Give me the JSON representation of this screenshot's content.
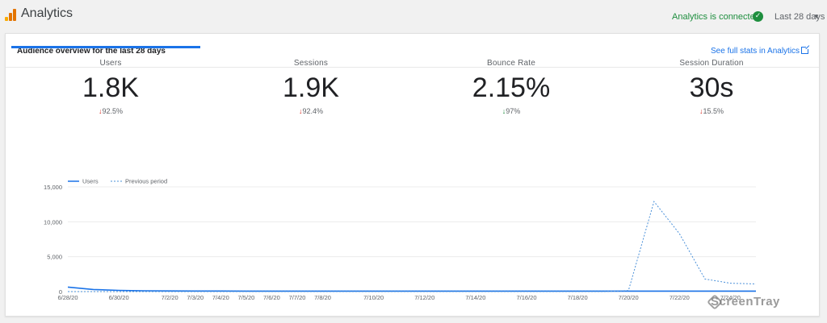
{
  "header": {
    "title": "Analytics",
    "connection_status": "Analytics is connected",
    "date_range": "Last 28 days",
    "colors": {
      "bar1": "#f9ab00",
      "bar2": "#e37400",
      "bar3": "#e37400",
      "connected": "#1e8e3e"
    }
  },
  "card": {
    "title": "Audience overview for the last 28 days",
    "full_stats_link": "See full stats in Analytics"
  },
  "metrics": [
    {
      "label": "Users",
      "value": "1.8K",
      "arrow": "↓",
      "change": "92.5%",
      "trend": "down-red"
    },
    {
      "label": "Sessions",
      "value": "1.9K",
      "arrow": "↓",
      "change": "92.4%",
      "trend": "down-red"
    },
    {
      "label": "Bounce Rate",
      "value": "2.15%",
      "arrow": "↓",
      "change": "97%",
      "trend": "down-green"
    },
    {
      "label": "Session Duration",
      "value": "30s",
      "arrow": "↓",
      "change": "15.5%",
      "trend": "down-red"
    }
  ],
  "chart_data": {
    "type": "line",
    "legend": [
      "Users",
      "Previous period"
    ],
    "yticks": [
      "15,000",
      "10,000",
      "5,000",
      "0"
    ],
    "ylim": [
      0,
      15000
    ],
    "grid": true,
    "x_ticks": [
      "6/28/20",
      "6/30/20",
      "7/2/20",
      "7/3/20",
      "7/4/20",
      "7/5/20",
      "7/6/20",
      "7/7/20",
      "7/8/20",
      "7/10/20",
      "7/12/20",
      "7/14/20",
      "7/16/20",
      "7/18/20",
      "7/20/20",
      "7/22/20",
      "7/24/20"
    ],
    "x_tick_days": [
      0,
      2,
      4,
      5,
      6,
      7,
      8,
      9,
      10,
      12,
      14,
      16,
      18,
      20,
      22,
      24,
      26
    ],
    "x_range_days": [
      0,
      27
    ],
    "series": [
      {
        "name": "Users",
        "style": "solid",
        "color": "#1a73e8",
        "x": [
          0,
          1,
          2,
          3,
          4,
          5,
          6,
          7,
          8,
          9,
          10,
          11,
          12,
          13,
          14,
          15,
          16,
          17,
          18,
          19,
          20,
          21,
          22,
          23,
          24,
          25,
          26,
          27
        ],
        "y": [
          650,
          300,
          170,
          120,
          90,
          80,
          75,
          70,
          70,
          65,
          65,
          65,
          65,
          65,
          65,
          65,
          65,
          65,
          65,
          65,
          65,
          65,
          65,
          65,
          65,
          65,
          65,
          65
        ]
      },
      {
        "name": "Previous period",
        "style": "dashed",
        "color": "#4a90d9",
        "x": [
          0,
          1,
          2,
          3,
          4,
          5,
          6,
          7,
          8,
          9,
          10,
          11,
          12,
          13,
          14,
          15,
          16,
          17,
          18,
          19,
          20,
          21,
          22,
          23,
          24,
          25,
          26,
          27
        ],
        "y": [
          0,
          0,
          0,
          0,
          0,
          0,
          0,
          0,
          0,
          0,
          0,
          0,
          0,
          0,
          0,
          0,
          0,
          0,
          0,
          0,
          0,
          0,
          150,
          12900,
          8300,
          1800,
          1200,
          1100
        ]
      }
    ]
  },
  "watermark": "ScreenTray"
}
